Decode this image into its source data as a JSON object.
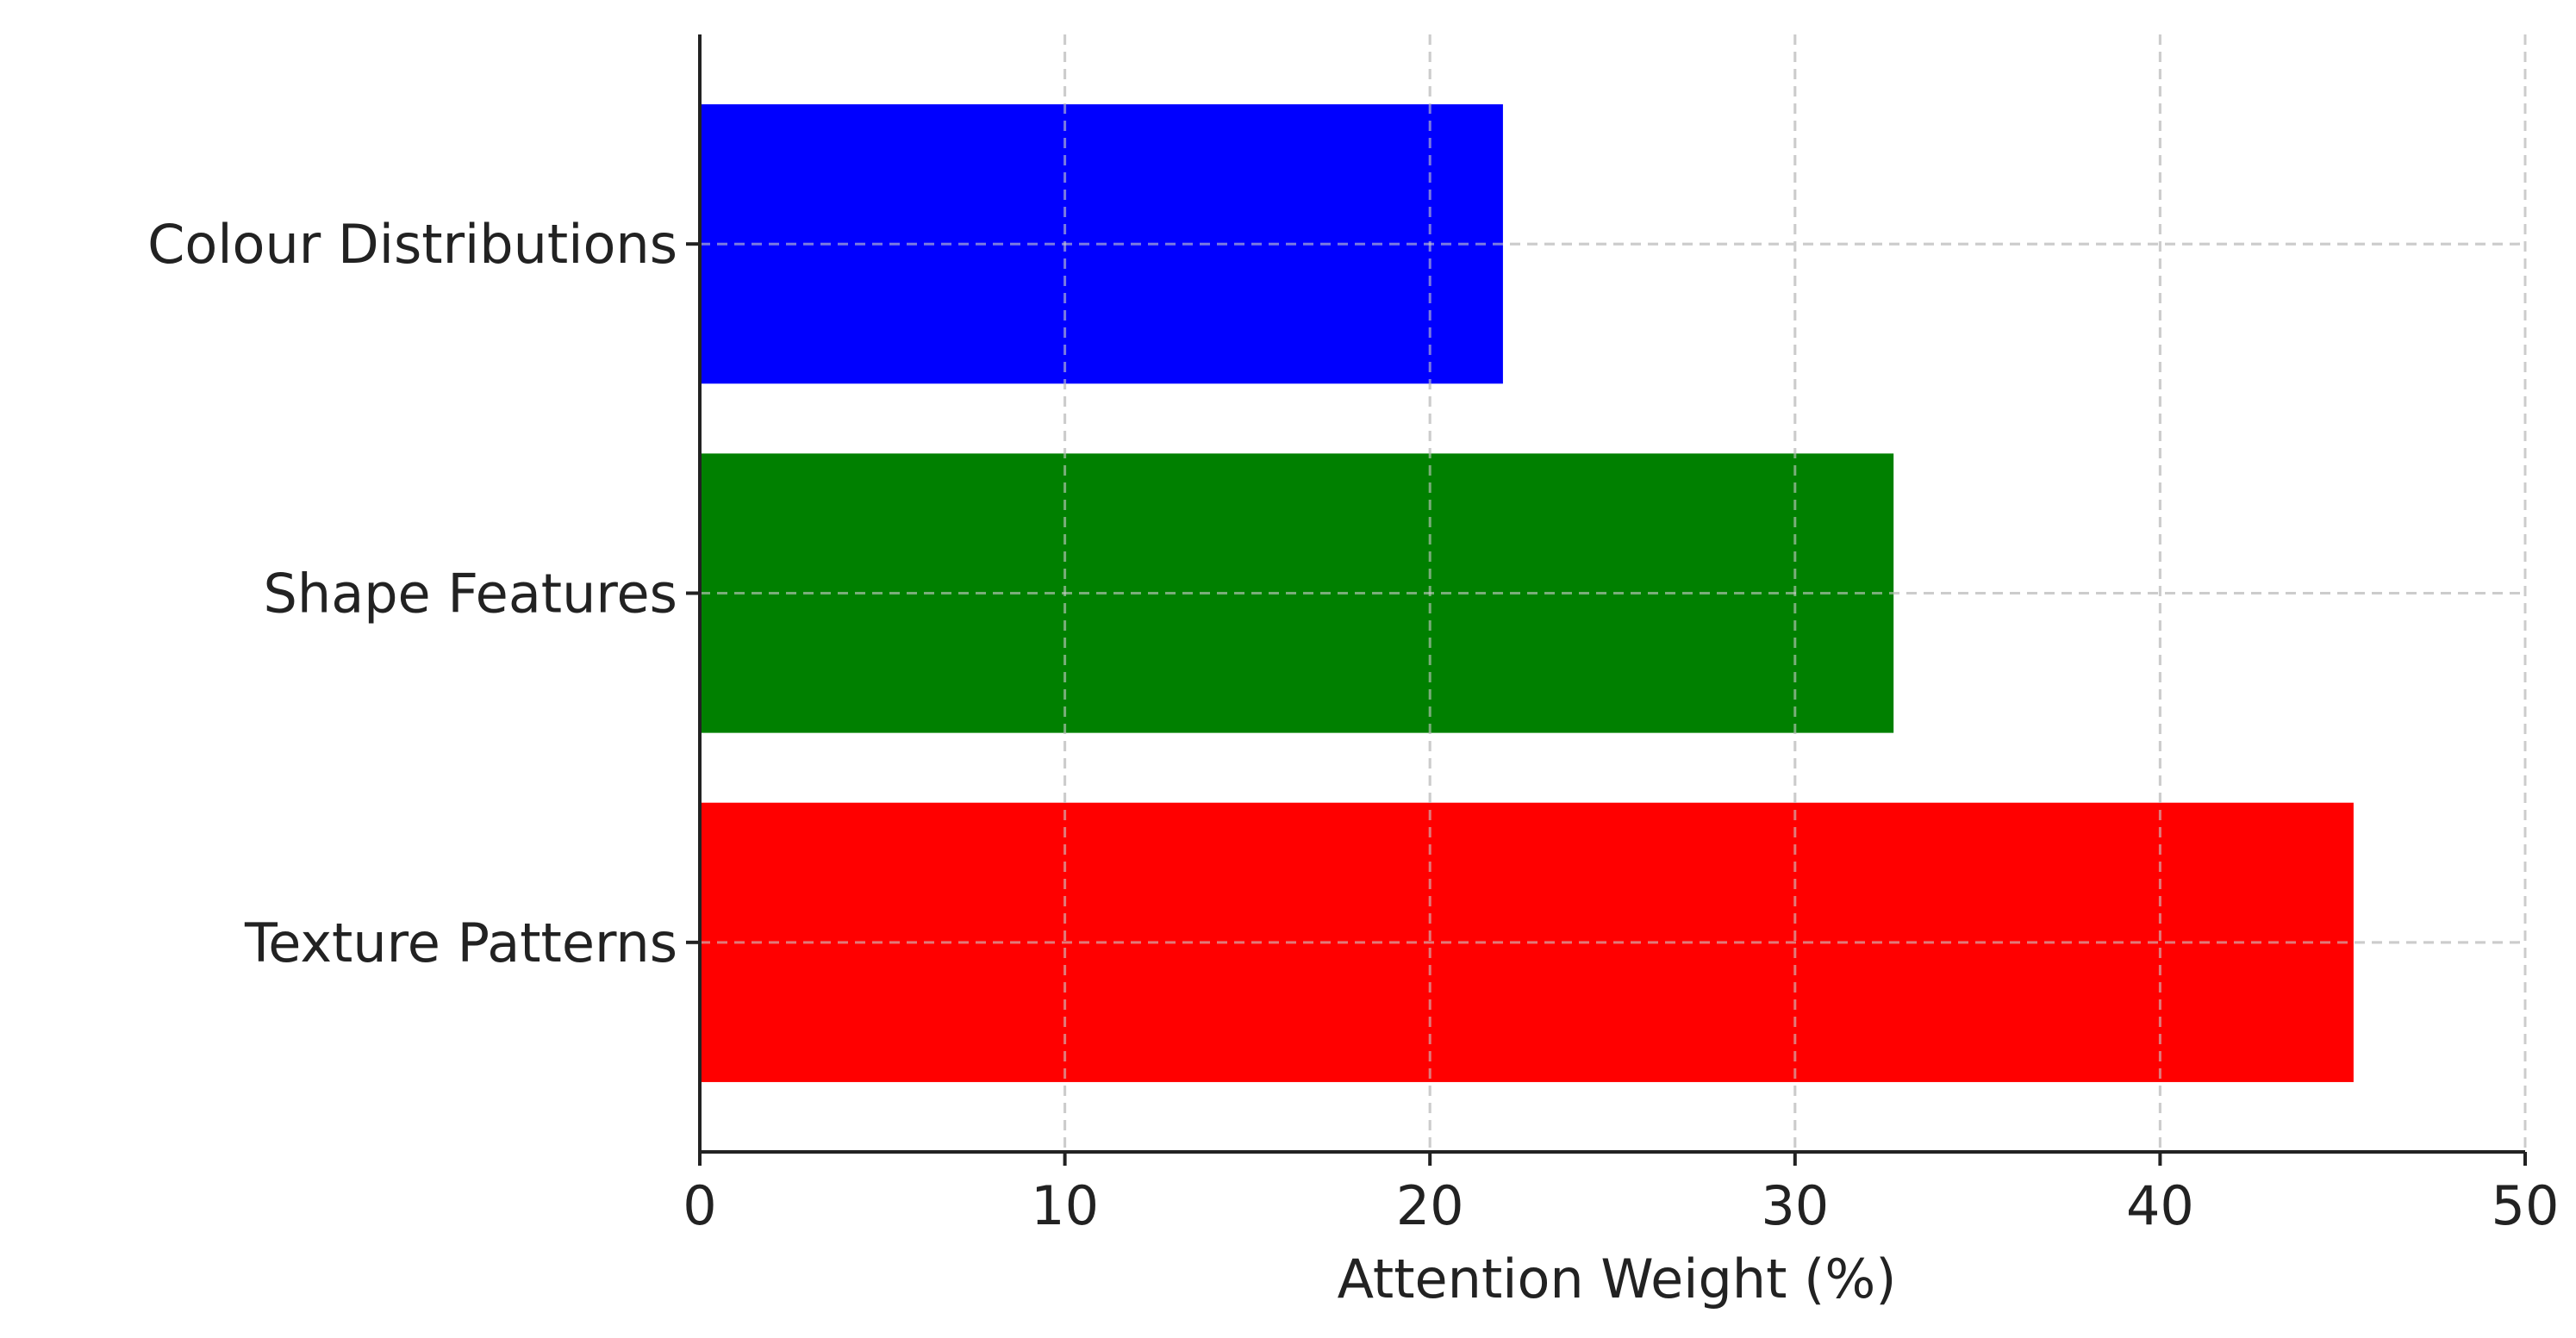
{
  "chart_data": {
    "type": "bar",
    "orientation": "horizontal",
    "categories": [
      "Colour Distributions",
      "Shape Features",
      "Texture Patterns"
    ],
    "values": [
      22.0,
      32.7,
      45.3
    ],
    "bar_colors": [
      "#0000ff",
      "#008000",
      "#ff0000"
    ],
    "title": "",
    "xlabel": "Attention Weight (%)",
    "ylabel": "",
    "xlim": [
      0,
      50
    ],
    "xticks": [
      0,
      10,
      20,
      30,
      40,
      50
    ],
    "grid": true,
    "grid_style": "dashed",
    "grid_color": "#cccccc",
    "axis_color": "#222222",
    "legend": "none"
  }
}
